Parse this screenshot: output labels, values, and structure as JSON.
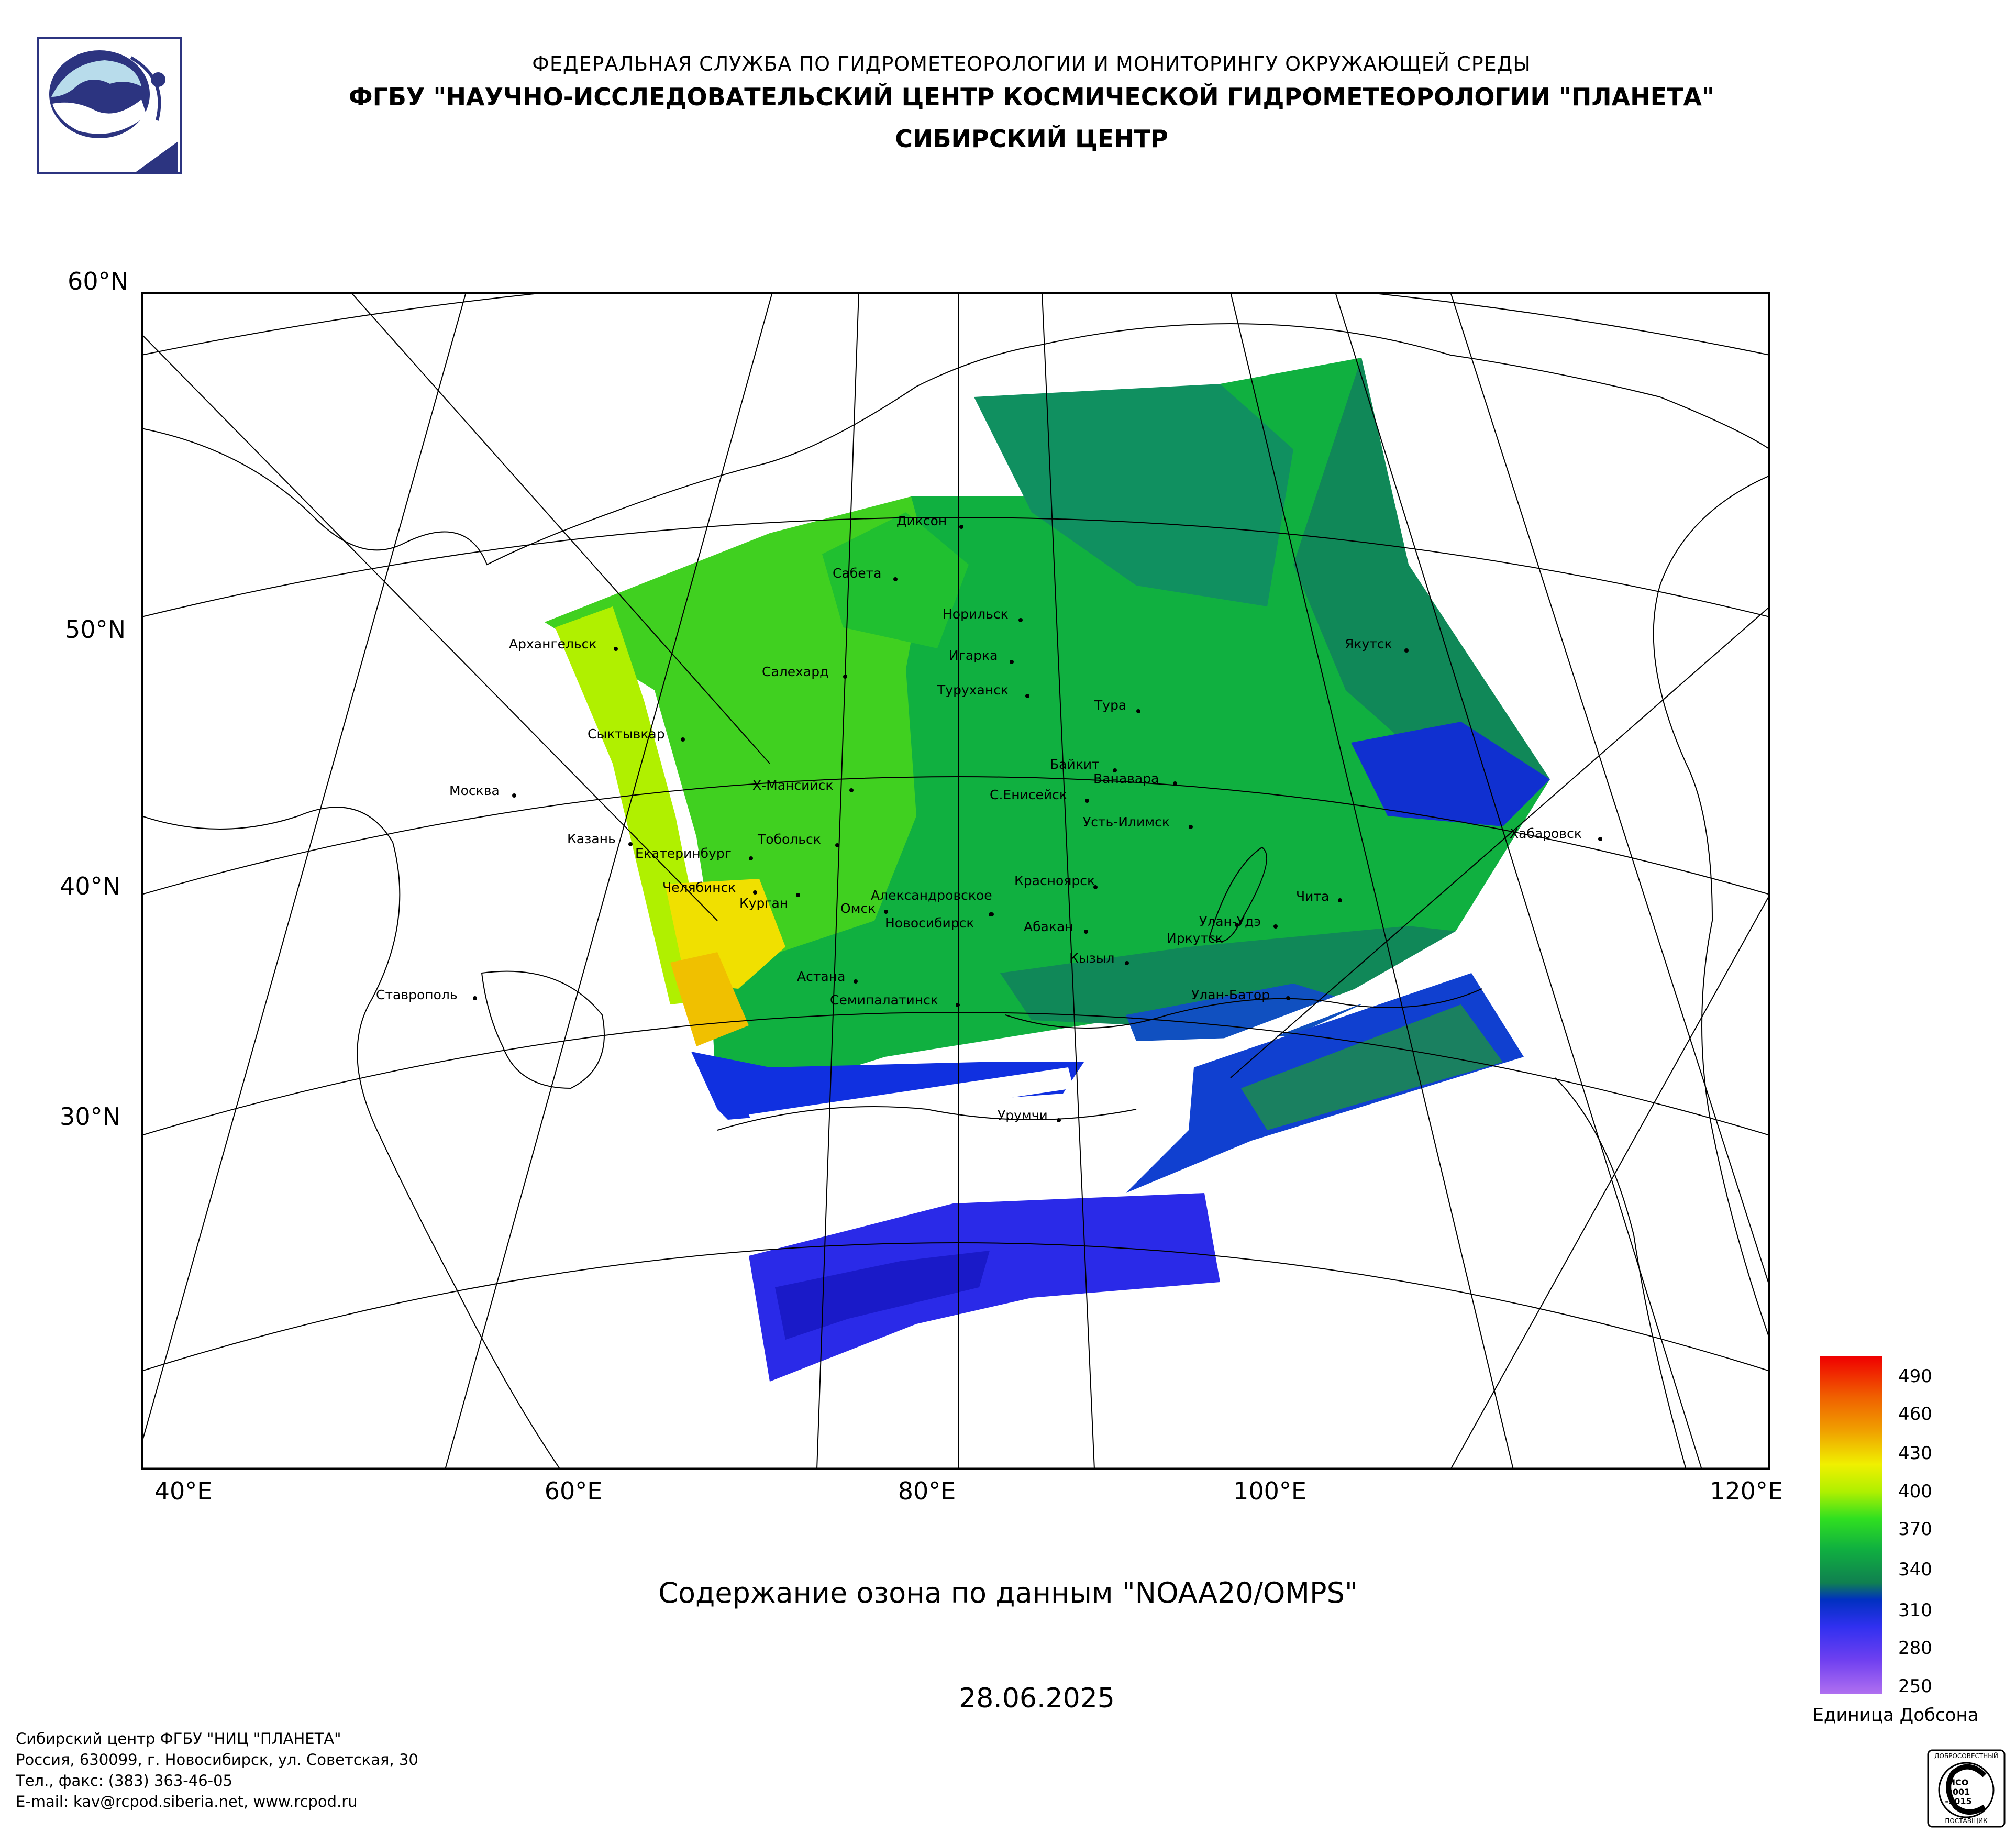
{
  "header": {
    "line1": "ФЕДЕРАЛЬНАЯ СЛУЖБА ПО ГИДРОМЕТЕОРОЛОГИИ И МОНИТОРИНГУ ОКРУЖАЮЩЕЙ СРЕДЫ",
    "line2": "ФГБУ \"НАУЧНО-ИССЛЕДОВАТЕЛЬСКИЙ ЦЕНТР КОСМИЧЕСКОЙ ГИДРОМЕТЕОРОЛОГИИ \"ПЛАНЕТА\"",
    "line3": "СИБИРСКИЙ ЦЕНТР"
  },
  "map": {
    "lat_labels": [
      "60°N",
      "50°N",
      "40°N",
      "30°N"
    ],
    "lon_labels": [
      "40°E",
      "60°E",
      "80°E",
      "100°E",
      "120°E"
    ],
    "cities": [
      {
        "name": "Диксон"
      },
      {
        "name": "Сабета"
      },
      {
        "name": "Норильск"
      },
      {
        "name": "Игарка"
      },
      {
        "name": "Туруханск"
      },
      {
        "name": "Салехард"
      },
      {
        "name": "Архангельск"
      },
      {
        "name": "Якутск"
      },
      {
        "name": "Тура"
      },
      {
        "name": "Сыктывкар"
      },
      {
        "name": "Байкит"
      },
      {
        "name": "Ванавара"
      },
      {
        "name": "Х-Мансийск"
      },
      {
        "name": "С.Енисейск"
      },
      {
        "name": "Москва"
      },
      {
        "name": "Усть-Илимск"
      },
      {
        "name": "Хабаровск"
      },
      {
        "name": "Казань"
      },
      {
        "name": "Тобольск"
      },
      {
        "name": "Екатеринбург"
      },
      {
        "name": "Красноярск"
      },
      {
        "name": "Челябинск"
      },
      {
        "name": "Александровское"
      },
      {
        "name": "Чита"
      },
      {
        "name": "Курган"
      },
      {
        "name": "Омск"
      },
      {
        "name": "Новосибирск"
      },
      {
        "name": "Абакан"
      },
      {
        "name": "Улан-Удэ"
      },
      {
        "name": "Иркутск"
      },
      {
        "name": "Кызыл"
      },
      {
        "name": "Астана"
      },
      {
        "name": "Ставрополь"
      },
      {
        "name": "Семипалатинск"
      },
      {
        "name": "Улан-Батор"
      },
      {
        "name": "Урумчи"
      }
    ]
  },
  "subtitle": "Содержание озона по данным \"NOAA20/OMPS\"",
  "date": "28.06.2025",
  "legend": {
    "ticks": [
      "490",
      "460",
      "430",
      "400",
      "370",
      "340",
      "310",
      "280",
      "250"
    ],
    "unit": "Единица Добсона",
    "colors": [
      "#b06cf0",
      "#8040f0",
      "#3030f0",
      "#0020c8",
      "#108040",
      "#10a040",
      "#20d020",
      "#a0f000",
      "#f0f000",
      "#f0a000",
      "#f06000",
      "#f00000"
    ]
  },
  "footer": {
    "line1": "Сибирский центр ФГБУ \"НИЦ \"ПЛАНЕТА\"",
    "line2": "Россия, 630099, г. Новосибирск, ул. Советская, 30",
    "line3": "Тел., факс: (383) 363-46-05",
    "line4": "E-mail: kav@rcpod.siberia.net, www.rcpod.ru"
  },
  "iso_badge": {
    "top": "ДОБРОСОВЕСТНЫЙ",
    "mid1": "ИСО",
    "mid2": "9001",
    "mid3": "-2015",
    "bottom": "ПОСТАВЩИК"
  }
}
